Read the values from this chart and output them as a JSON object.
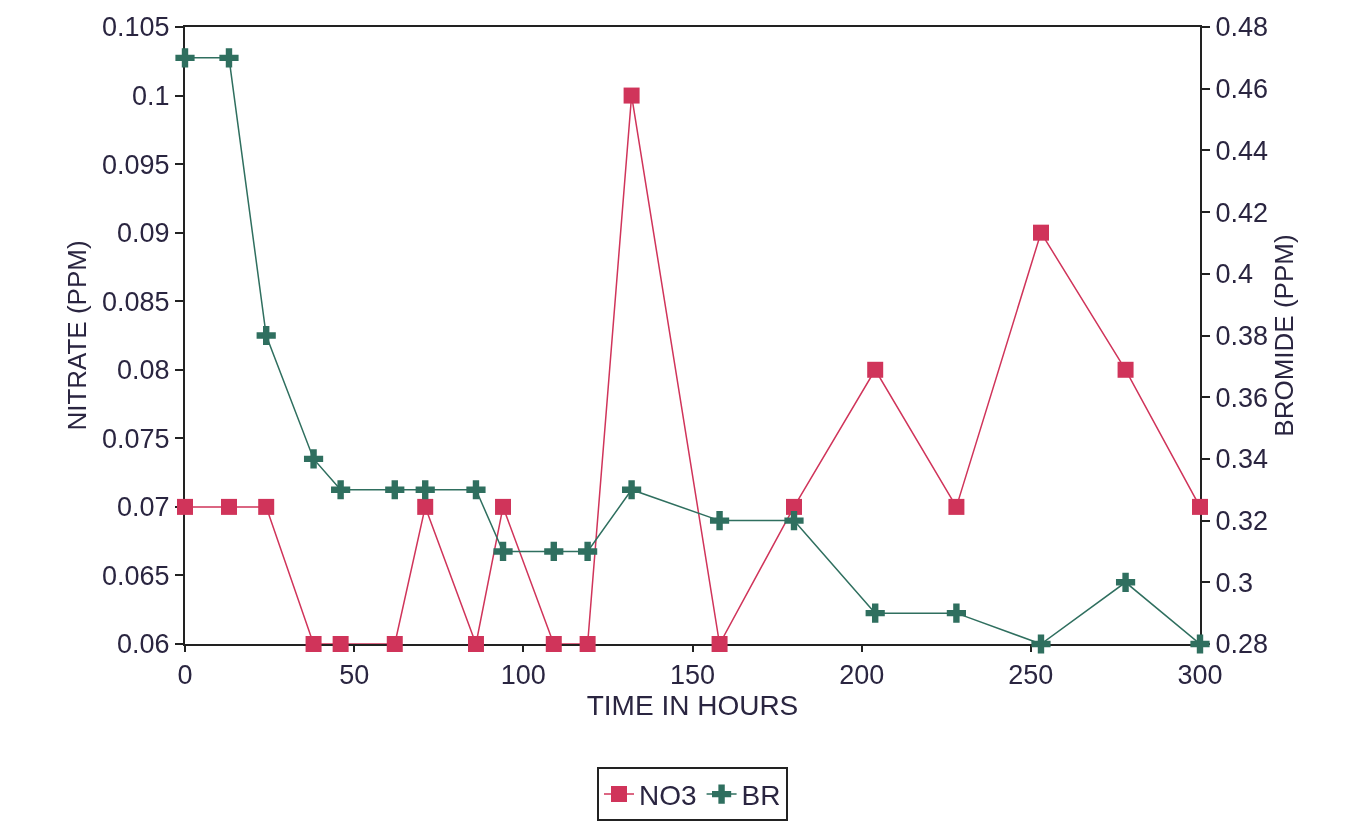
{
  "chart_data": {
    "type": "line",
    "xlabel": "TIME IN HOURS",
    "ylabel": "NITRATE (PPM)",
    "y2label": "BROMIDE (PPM)",
    "x": [
      0,
      13,
      24,
      38,
      46,
      62,
      71,
      86,
      94,
      109,
      119,
      132,
      158,
      180,
      204,
      228,
      253,
      278,
      300
    ],
    "series": [
      {
        "name": "NO3",
        "color": "#d0345a",
        "marker": "square",
        "values": [
          0.07,
          0.07,
          0.07,
          0.06,
          0.06,
          0.06,
          0.07,
          0.06,
          0.07,
          0.06,
          0.06,
          0.1,
          0.06,
          0.07,
          0.08,
          0.07,
          0.09,
          0.08,
          0.07
        ]
      },
      {
        "name": "BR",
        "color": "#2f6f5f",
        "marker": "cross",
        "axis": "y2",
        "values": [
          0.47,
          0.47,
          0.38,
          0.34,
          0.33,
          0.33,
          0.33,
          0.33,
          0.31,
          0.31,
          0.31,
          0.33,
          0.32,
          0.32,
          0.29,
          0.29,
          0.28,
          0.3,
          0.28
        ]
      }
    ],
    "xlim": [
      0,
      300
    ],
    "xticks": [
      0,
      50,
      100,
      150,
      200,
      250,
      300
    ],
    "ylim": [
      0.06,
      0.105
    ],
    "yticks": [
      0.06,
      0.065,
      0.07,
      0.075,
      0.08,
      0.085,
      0.09,
      0.095,
      0.1,
      0.105
    ],
    "y2lim": [
      0.28,
      0.48
    ],
    "y2ticks": [
      0.28,
      0.3,
      0.32,
      0.34,
      0.36,
      0.38,
      0.4,
      0.42,
      0.44,
      0.46,
      0.48
    ],
    "grid": false,
    "legend": "bottom",
    "line_style": "solid"
  }
}
